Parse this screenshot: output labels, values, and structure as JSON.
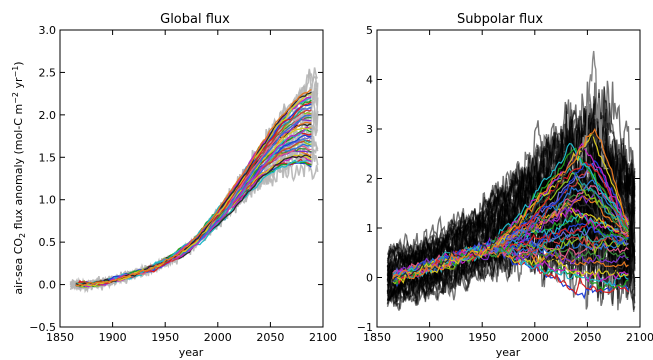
{
  "chart_data": [
    {
      "type": "line",
      "title": "Global flux",
      "xlabel": "year",
      "ylabel_parts": [
        "air-sea CO",
        "2",
        " flux anomaly (mol-C m",
        "−2",
        " yr",
        "−1",
        ")"
      ],
      "xlim": [
        1850,
        2100
      ],
      "ylim": [
        -0.5,
        3.0
      ],
      "xticks": [
        1850,
        1900,
        1950,
        2000,
        2050,
        2100
      ],
      "yticks": [
        -0.5,
        0.0,
        0.5,
        1.0,
        1.5,
        2.0,
        2.5,
        3.0
      ],
      "ytick_labels": [
        "−0.5",
        "0.0",
        "0.5",
        "1.0",
        "1.5",
        "2.0",
        "2.5",
        "3.0"
      ],
      "grid": false,
      "ensemble_gray": {
        "count": 12,
        "x": [
          1860,
          1880,
          1900,
          1920,
          1940,
          1960,
          1980,
          2000,
          2020,
          2040,
          2060,
          2080,
          2095
        ],
        "y": [
          0.0,
          0.0,
          0.05,
          0.12,
          0.2,
          0.33,
          0.52,
          0.8,
          1.12,
          1.47,
          1.78,
          2.05,
          2.2
        ],
        "spread_end": [
          1.35,
          2.55
        ],
        "color": "#b5b5b5"
      },
      "ensemble_colored": {
        "count": 40,
        "x": [
          1865,
          1880,
          1900,
          1920,
          1940,
          1960,
          1980,
          2000,
          2020,
          2040,
          2060,
          2080,
          2090
        ],
        "y": [
          0.0,
          0.0,
          0.05,
          0.12,
          0.2,
          0.33,
          0.52,
          0.79,
          1.1,
          1.43,
          1.7,
          1.85,
          1.85
        ],
        "spread_end": [
          1.35,
          2.3
        ]
      }
    },
    {
      "type": "line",
      "title": "Subpolar flux",
      "xlabel": "year",
      "xlim": [
        1850,
        2100
      ],
      "ylim": [
        -1,
        5
      ],
      "xticks": [
        1850,
        1900,
        1950,
        2000,
        2050,
        2100
      ],
      "yticks": [
        -1,
        0,
        1,
        2,
        3,
        4,
        5
      ],
      "ytick_labels": [
        "−1",
        "0",
        "1",
        "2",
        "3",
        "4",
        "5"
      ],
      "grid": false,
      "ensemble_black": {
        "count": 40,
        "x": [
          1860,
          1900,
          1950,
          2000,
          2040,
          2060,
          2080,
          2095
        ],
        "y": [
          0.0,
          0.25,
          0.7,
          1.3,
          1.6,
          1.55,
          1.1,
          0.7
        ],
        "band_lower": [
          -0.6,
          -0.4,
          0.0,
          0.2,
          0.0,
          -0.2,
          -0.5,
          -0.6
        ],
        "band_upper": [
          0.6,
          0.9,
          1.6,
          2.8,
          3.6,
          4.0,
          3.2,
          2.6
        ],
        "peak": {
          "x": 2055,
          "y": 4.5
        },
        "color": "#000000"
      },
      "ensemble_colored": {
        "count": 40,
        "x": [
          1865,
          1900,
          1950,
          2000,
          2040,
          2060,
          2080,
          2090
        ],
        "y": [
          0.0,
          0.25,
          0.6,
          1.1,
          1.4,
          1.3,
          0.9,
          0.7
        ],
        "spread_at_peak": [
          -0.3,
          3.0
        ]
      }
    }
  ],
  "colors": {
    "palette": [
      "#1f3fd6",
      "#d62020",
      "#20a020",
      "#20b8c8",
      "#c020c0",
      "#d8c820",
      "#2a2a2a",
      "#e87820",
      "#7a30c8",
      "#3a8a3a",
      "#e05a8a",
      "#2a7ad6",
      "#90c020",
      "#c83a3a",
      "#1fa0a0",
      "#6a6ad8"
    ]
  }
}
